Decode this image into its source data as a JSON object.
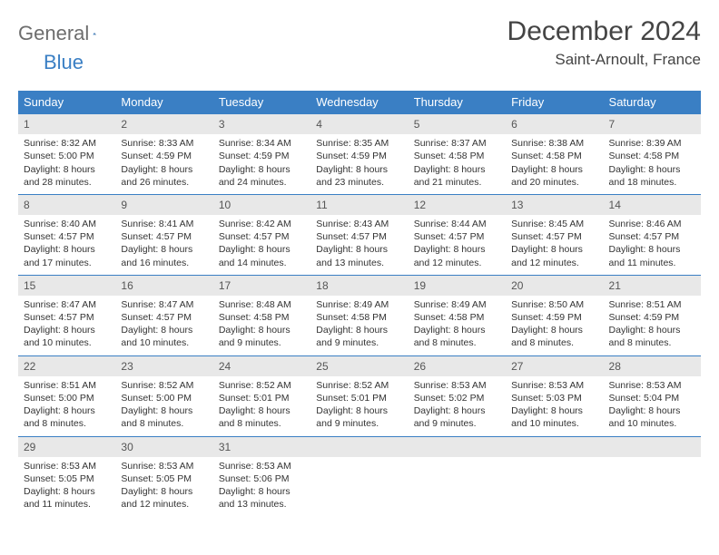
{
  "logo": {
    "word1": "General",
    "word2": "Blue"
  },
  "title": "December 2024",
  "location": "Saint-Arnoult, France",
  "header_bg": "#3a7fc4",
  "daynum_bg": "#e8e8e8",
  "days_of_week": [
    "Sunday",
    "Monday",
    "Tuesday",
    "Wednesday",
    "Thursday",
    "Friday",
    "Saturday"
  ],
  "weeks": [
    [
      {
        "n": "1",
        "sr": "8:32 AM",
        "ss": "5:00 PM",
        "dl": "8 hours and 28 minutes."
      },
      {
        "n": "2",
        "sr": "8:33 AM",
        "ss": "4:59 PM",
        "dl": "8 hours and 26 minutes."
      },
      {
        "n": "3",
        "sr": "8:34 AM",
        "ss": "4:59 PM",
        "dl": "8 hours and 24 minutes."
      },
      {
        "n": "4",
        "sr": "8:35 AM",
        "ss": "4:59 PM",
        "dl": "8 hours and 23 minutes."
      },
      {
        "n": "5",
        "sr": "8:37 AM",
        "ss": "4:58 PM",
        "dl": "8 hours and 21 minutes."
      },
      {
        "n": "6",
        "sr": "8:38 AM",
        "ss": "4:58 PM",
        "dl": "8 hours and 20 minutes."
      },
      {
        "n": "7",
        "sr": "8:39 AM",
        "ss": "4:58 PM",
        "dl": "8 hours and 18 minutes."
      }
    ],
    [
      {
        "n": "8",
        "sr": "8:40 AM",
        "ss": "4:57 PM",
        "dl": "8 hours and 17 minutes."
      },
      {
        "n": "9",
        "sr": "8:41 AM",
        "ss": "4:57 PM",
        "dl": "8 hours and 16 minutes."
      },
      {
        "n": "10",
        "sr": "8:42 AM",
        "ss": "4:57 PM",
        "dl": "8 hours and 14 minutes."
      },
      {
        "n": "11",
        "sr": "8:43 AM",
        "ss": "4:57 PM",
        "dl": "8 hours and 13 minutes."
      },
      {
        "n": "12",
        "sr": "8:44 AM",
        "ss": "4:57 PM",
        "dl": "8 hours and 12 minutes."
      },
      {
        "n": "13",
        "sr": "8:45 AM",
        "ss": "4:57 PM",
        "dl": "8 hours and 12 minutes."
      },
      {
        "n": "14",
        "sr": "8:46 AM",
        "ss": "4:57 PM",
        "dl": "8 hours and 11 minutes."
      }
    ],
    [
      {
        "n": "15",
        "sr": "8:47 AM",
        "ss": "4:57 PM",
        "dl": "8 hours and 10 minutes."
      },
      {
        "n": "16",
        "sr": "8:47 AM",
        "ss": "4:57 PM",
        "dl": "8 hours and 10 minutes."
      },
      {
        "n": "17",
        "sr": "8:48 AM",
        "ss": "4:58 PM",
        "dl": "8 hours and 9 minutes."
      },
      {
        "n": "18",
        "sr": "8:49 AM",
        "ss": "4:58 PM",
        "dl": "8 hours and 9 minutes."
      },
      {
        "n": "19",
        "sr": "8:49 AM",
        "ss": "4:58 PM",
        "dl": "8 hours and 8 minutes."
      },
      {
        "n": "20",
        "sr": "8:50 AM",
        "ss": "4:59 PM",
        "dl": "8 hours and 8 minutes."
      },
      {
        "n": "21",
        "sr": "8:51 AM",
        "ss": "4:59 PM",
        "dl": "8 hours and 8 minutes."
      }
    ],
    [
      {
        "n": "22",
        "sr": "8:51 AM",
        "ss": "5:00 PM",
        "dl": "8 hours and 8 minutes."
      },
      {
        "n": "23",
        "sr": "8:52 AM",
        "ss": "5:00 PM",
        "dl": "8 hours and 8 minutes."
      },
      {
        "n": "24",
        "sr": "8:52 AM",
        "ss": "5:01 PM",
        "dl": "8 hours and 8 minutes."
      },
      {
        "n": "25",
        "sr": "8:52 AM",
        "ss": "5:01 PM",
        "dl": "8 hours and 9 minutes."
      },
      {
        "n": "26",
        "sr": "8:53 AM",
        "ss": "5:02 PM",
        "dl": "8 hours and 9 minutes."
      },
      {
        "n": "27",
        "sr": "8:53 AM",
        "ss": "5:03 PM",
        "dl": "8 hours and 10 minutes."
      },
      {
        "n": "28",
        "sr": "8:53 AM",
        "ss": "5:04 PM",
        "dl": "8 hours and 10 minutes."
      }
    ],
    [
      {
        "n": "29",
        "sr": "8:53 AM",
        "ss": "5:05 PM",
        "dl": "8 hours and 11 minutes."
      },
      {
        "n": "30",
        "sr": "8:53 AM",
        "ss": "5:05 PM",
        "dl": "8 hours and 12 minutes."
      },
      {
        "n": "31",
        "sr": "8:53 AM",
        "ss": "5:06 PM",
        "dl": "8 hours and 13 minutes."
      },
      null,
      null,
      null,
      null
    ]
  ],
  "labels": {
    "sunrise": "Sunrise:",
    "sunset": "Sunset:",
    "daylight": "Daylight:"
  }
}
